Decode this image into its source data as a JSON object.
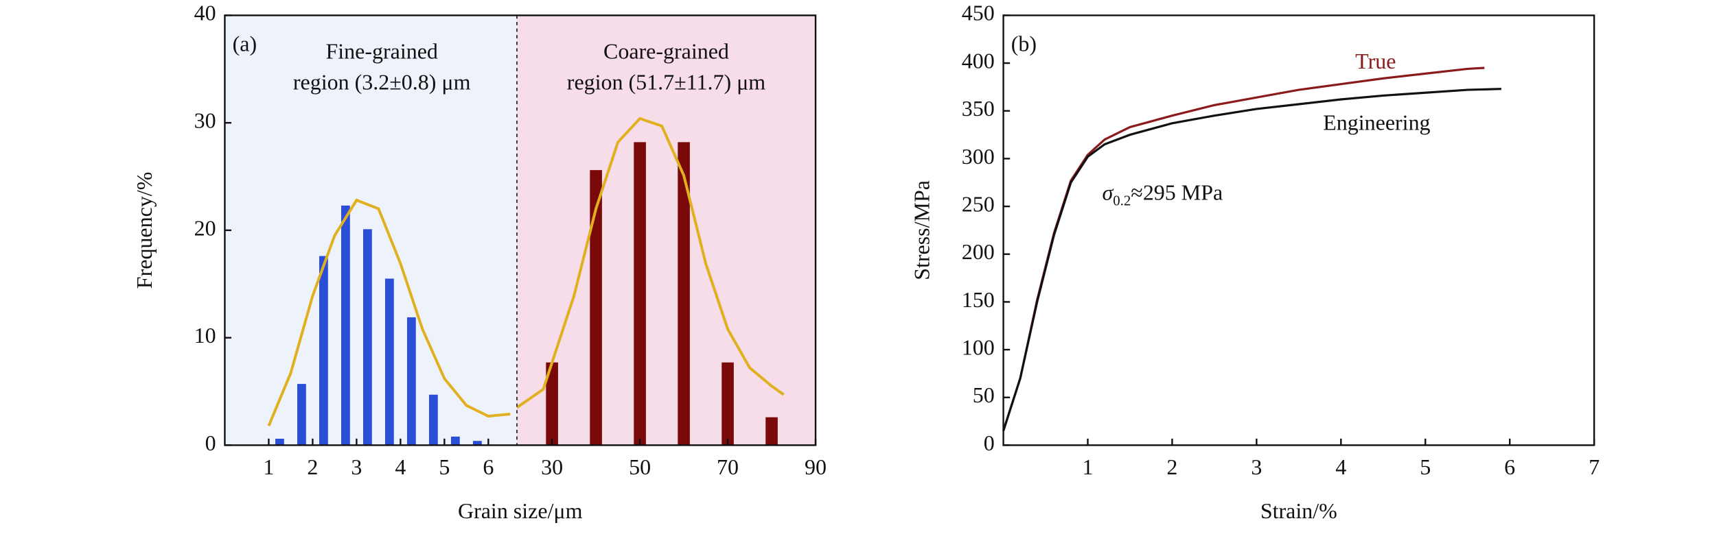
{
  "chart_data": [
    {
      "type": "bar",
      "panel_label": "(a)",
      "ylabel": "Frequency/%",
      "xlabel": "Grain size/μm",
      "ylim": [
        0,
        40
      ],
      "yticks": [
        0,
        10,
        20,
        30,
        40
      ],
      "curve_color": "#e0b020",
      "segments": [
        {
          "annotation": [
            "Fine-grained",
            "region (3.2±0.8) μm"
          ],
          "background": "#eef2fa",
          "xlim": [
            0,
            6.65
          ],
          "xticks": [
            1,
            2,
            3,
            4,
            5,
            6
          ],
          "color": "#2a4fd6",
          "x": [
            1.25,
            1.75,
            2.25,
            2.75,
            3.25,
            3.75,
            4.25,
            4.75,
            5.25,
            5.75
          ],
          "values": [
            0.6,
            5.7,
            17.6,
            22.3,
            20.1,
            15.5,
            11.9,
            4.7,
            0.8,
            0.4
          ],
          "curve": {
            "x": [
              1,
              1.5,
              2,
              2.5,
              3,
              3.5,
              4,
              4.5,
              5,
              5.5,
              6,
              6.5
            ],
            "values": [
              1.8,
              6.7,
              13.9,
              19.5,
              22.8,
              22.0,
              16.9,
              10.8,
              6.2,
              3.7,
              2.7,
              2.9
            ]
          }
        },
        {
          "annotation": [
            "Coare-grained",
            "region (51.7±11.7) μm"
          ],
          "background": "#f7dce9",
          "xlim": [
            22,
            90
          ],
          "xticks": [
            30,
            50,
            70,
            90
          ],
          "color": "#7a0a0a",
          "x": [
            30,
            40,
            50,
            60,
            70,
            80
          ],
          "values": [
            7.7,
            25.6,
            28.2,
            28.2,
            7.7,
            2.6
          ],
          "curve": {
            "x": [
              22,
              28,
              35,
              40,
              45,
              50,
              55,
              60,
              65,
              70,
              75,
              80,
              82.75
            ],
            "values": [
              3.5,
              5.2,
              13.9,
              22.0,
              28.2,
              30.4,
              29.7,
              25.1,
              16.9,
              10.8,
              7.2,
              5.5,
              4.7
            ]
          }
        }
      ]
    },
    {
      "type": "line",
      "panel_label": "(b)",
      "ylabel": "Stress/MPa",
      "xlabel": "Strain/%",
      "xlim": [
        0,
        7
      ],
      "xticks": [
        1,
        2,
        3,
        4,
        5,
        6,
        7
      ],
      "ylim": [
        0,
        450
      ],
      "yticks": [
        0,
        50,
        100,
        150,
        200,
        250,
        300,
        350,
        400,
        450
      ],
      "annotation": {
        "symbol": "σ",
        "subscript": "0.2",
        "text": "≈295 MPa"
      },
      "series": [
        {
          "name": "True",
          "color": "#8b1a1a",
          "x": [
            0,
            0.2,
            0.4,
            0.6,
            0.8,
            1.0,
            1.2,
            1.5,
            2,
            2.5,
            3,
            3.5,
            4,
            4.5,
            5,
            5.5,
            5.7
          ],
          "values": [
            15,
            70,
            152,
            222,
            277,
            304,
            320,
            333,
            345,
            356,
            364,
            372,
            378,
            384,
            389,
            394,
            395
          ]
        },
        {
          "name": "Engineering",
          "color": "#111111",
          "x": [
            0,
            0.2,
            0.4,
            0.6,
            0.8,
            1.0,
            1.2,
            1.5,
            2,
            2.5,
            3,
            3.5,
            4,
            4.5,
            5,
            5.5,
            5.9
          ],
          "values": [
            15,
            70,
            150,
            220,
            275,
            302,
            315,
            325,
            337,
            345,
            352,
            357,
            362,
            366,
            369,
            372,
            373
          ]
        }
      ]
    }
  ]
}
